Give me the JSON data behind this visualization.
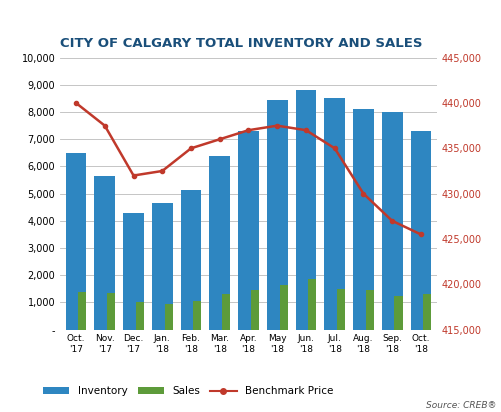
{
  "title": "CITY OF CALGARY TOTAL INVENTORY AND SALES",
  "categories": [
    "Oct.\n'17",
    "Nov.\n'17",
    "Dec.\n'17",
    "Jan.\n'18",
    "Feb.\n'18",
    "Mar.\n'18",
    "Apr.\n'18",
    "May\n'18",
    "Jun.\n'18",
    "Jul.\n'18",
    "Aug.\n'18",
    "Sep.\n'18",
    "Oct.\n'18"
  ],
  "inventory": [
    6500,
    5650,
    4300,
    4650,
    5150,
    6400,
    7300,
    8450,
    8800,
    8500,
    8100,
    8000,
    7300
  ],
  "sales": [
    1400,
    1350,
    1000,
    950,
    1050,
    1300,
    1450,
    1650,
    1850,
    1500,
    1450,
    1250,
    1300
  ],
  "benchmark_price": [
    440000,
    437500,
    432000,
    432500,
    435000,
    436000,
    437000,
    437500,
    437000,
    435000,
    430000,
    427000,
    425500
  ],
  "inventory_color": "#2E86C1",
  "sales_color": "#5D9B3A",
  "benchmark_color": "#C0392B",
  "left_ylim": [
    0,
    10000
  ],
  "left_yticks": [
    0,
    1000,
    2000,
    3000,
    4000,
    5000,
    6000,
    7000,
    8000,
    9000,
    10000
  ],
  "right_ylim": [
    415000,
    445000
  ],
  "right_yticks": [
    415000,
    420000,
    425000,
    430000,
    435000,
    440000,
    445000
  ],
  "background_color": "#FFFFFF",
  "source_text": "Source: CREB®",
  "legend_inventory": "Inventory",
  "legend_sales": "Sales",
  "legend_benchmark": "Benchmark Price",
  "title_color": "#1A4F7A"
}
